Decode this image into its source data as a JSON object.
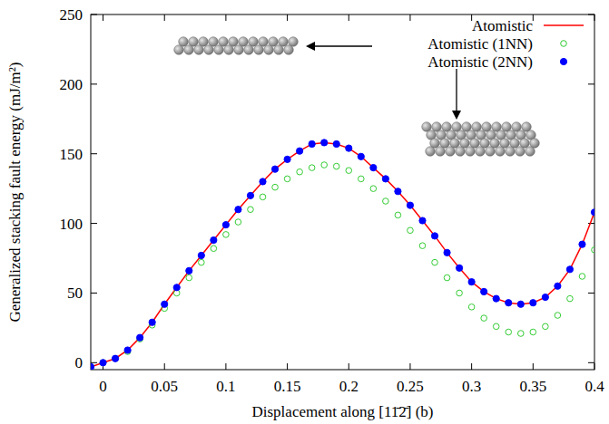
{
  "chart_data": {
    "type": "line",
    "x_label": "Displacement along [11̄2̄] (b)",
    "y_label": "Generalized stacking fault energy (mJ/m²)",
    "x": [
      -0.01,
      0,
      0.01,
      0.02,
      0.03,
      0.04,
      0.05,
      0.06,
      0.07,
      0.08,
      0.09,
      0.1,
      0.11,
      0.12,
      0.13,
      0.14,
      0.15,
      0.16,
      0.17,
      0.18,
      0.19,
      0.2,
      0.21,
      0.22,
      0.23,
      0.24,
      0.25,
      0.26,
      0.27,
      0.28,
      0.29,
      0.3,
      0.31,
      0.32,
      0.33,
      0.34,
      0.35,
      0.36,
      0.37,
      0.38,
      0.39,
      0.4
    ],
    "series": [
      {
        "name": "Atomistic",
        "color": "#ff0000",
        "line_style": "solid",
        "marker": "none",
        "values": [
          -3,
          0,
          3,
          9,
          18,
          29,
          42,
          54,
          66,
          77,
          88,
          99,
          110,
          120,
          130,
          139,
          146,
          152,
          157,
          158,
          157,
          154,
          148,
          140,
          132,
          123,
          113,
          102,
          91,
          79,
          68,
          58,
          51,
          46,
          43,
          42,
          43,
          47,
          55,
          67,
          85,
          108
        ]
      },
      {
        "name": "Atomistic (1NN)",
        "color": "#33cc33",
        "line_style": "none",
        "marker": "open-circle",
        "values": [
          -3,
          0,
          3,
          8,
          17,
          27,
          39,
          50,
          61,
          72,
          82,
          92,
          101,
          110,
          119,
          126,
          132,
          137,
          140,
          142,
          141,
          138,
          132,
          125,
          116,
          106,
          95,
          84,
          72,
          61,
          50,
          40,
          32,
          26,
          22,
          21,
          22,
          26,
          34,
          46,
          62,
          81
        ]
      },
      {
        "name": "Atomistic (2NN)",
        "color": "#0000ff",
        "line_style": "none",
        "marker": "circle",
        "values": [
          -3,
          0,
          3,
          9,
          18,
          29,
          42,
          54,
          66,
          77,
          88,
          99,
          110,
          120,
          130,
          139,
          146,
          152,
          157,
          158,
          157,
          154,
          148,
          140,
          132,
          123,
          113,
          102,
          91,
          79,
          68,
          58,
          51,
          46,
          43,
          42,
          43,
          47,
          55,
          67,
          85,
          108
        ]
      }
    ],
    "xlim": [
      -0.01,
      0.4
    ],
    "xticks": [
      0,
      0.05,
      0.1,
      0.15,
      0.2,
      0.25,
      0.3,
      0.35,
      0.4
    ],
    "ylim": [
      -5,
      250
    ],
    "yticks": [
      0,
      50,
      100,
      150,
      200,
      250
    ],
    "grid": false,
    "legend": "upper right"
  }
}
